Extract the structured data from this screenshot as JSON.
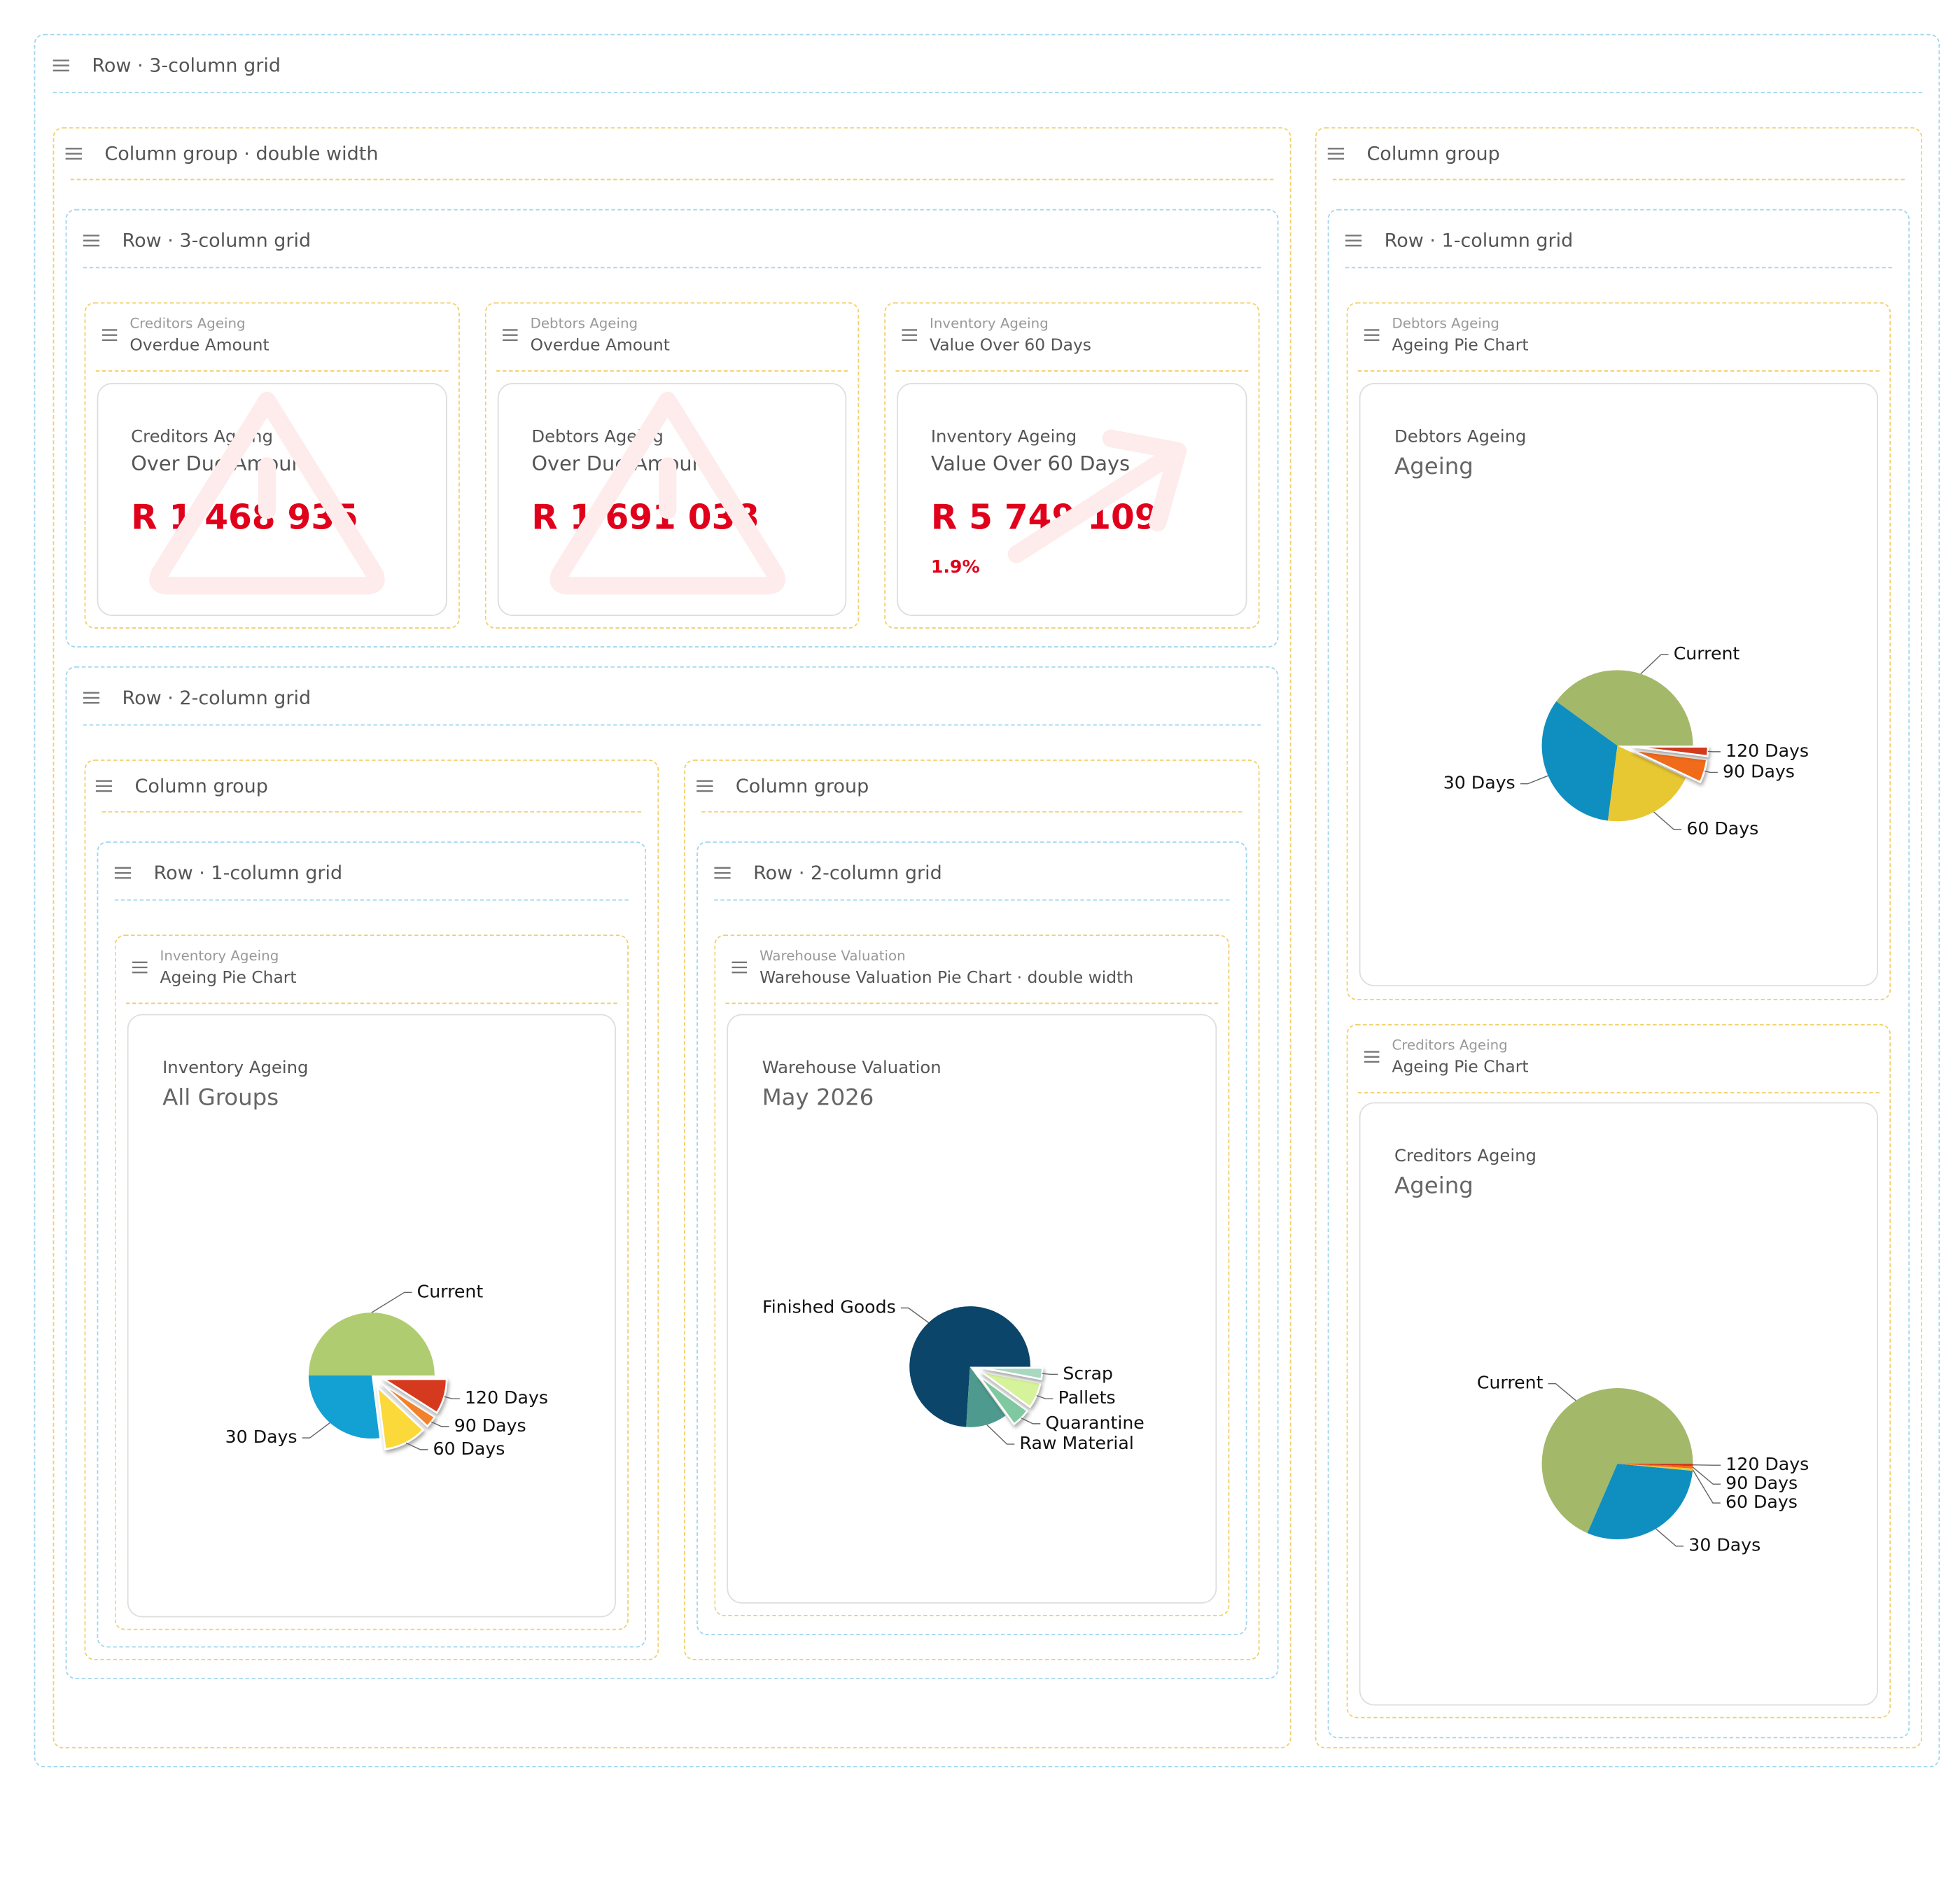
{
  "grid": {
    "label": "Row · 3-column grid",
    "left": {
      "label": "Column group · double width",
      "kpi_row": {
        "label": "Row · 3-column grid",
        "widgets": [
          {
            "source": "Creditors Ageing",
            "name": "Overdue Amount",
            "card": {
              "subtitle": "Creditors Ageing",
              "title": "Over Due Amount",
              "value": "R 1 468 935"
            }
          },
          {
            "source": "Debtors Ageing",
            "name": "Overdue Amount",
            "card": {
              "subtitle": "Debtors Ageing",
              "title": "Over Due Amount",
              "value": "R 1 691 038"
            }
          },
          {
            "source": "Inventory Ageing",
            "name": "Value Over 60 Days",
            "card": {
              "subtitle": "Inventory Ageing",
              "title": "Value Over 60 Days",
              "value": "R 5 749 109",
              "change": "1.9%"
            }
          }
        ]
      },
      "chart_row": {
        "label": "Row · 2-column grid",
        "groups": [
          {
            "label": "Column group",
            "row": {
              "label": "Row · 1-column grid",
              "widget": {
                "source": "Inventory Ageing",
                "name": "Ageing Pie Chart",
                "chart": {
                  "type": "pie",
                  "subtitle": "Inventory Ageing",
                  "title": "All Groups",
                  "categories": [
                    "Current",
                    "30 Days",
                    "60 Days",
                    "90 Days",
                    "120 Days"
                  ],
                  "values": [
                    50,
                    27,
                    11,
                    3,
                    9
                  ],
                  "colors": [
                    "#b0cc70",
                    "#13a0d2",
                    "#fcd93a",
                    "#f3812c",
                    "#d63a1e"
                  ],
                  "explode": [
                    false,
                    false,
                    true,
                    true,
                    true
                  ]
                }
              }
            }
          },
          {
            "label": "Column group",
            "row": {
              "label": "Row · 2-column grid",
              "widget": {
                "source": "Warehouse Valuation",
                "name": "Warehouse Valuation Pie Chart · double width",
                "chart": {
                  "type": "pie",
                  "subtitle": "Warehouse Valuation",
                  "title": "May 2026",
                  "categories": [
                    "Finished Goods",
                    "Raw Material",
                    "Quarantine",
                    "Pallets",
                    "Scrap"
                  ],
                  "values": [
                    74,
                    11,
                    5,
                    7,
                    3
                  ],
                  "colors": [
                    "#0b4569",
                    "#4f9a8e",
                    "#7fc8a0",
                    "#d6f29a",
                    "#a8d8c0"
                  ],
                  "explode": [
                    false,
                    false,
                    true,
                    true,
                    true
                  ]
                }
              }
            }
          }
        ]
      }
    },
    "right": {
      "label": "Column group",
      "row": {
        "label": "Row · 1-column grid",
        "widgets": [
          {
            "source": "Debtors Ageing",
            "name": "Ageing Pie Chart",
            "chart": {
              "type": "pie",
              "subtitle": "Debtors Ageing",
              "title": "Ageing",
              "categories": [
                "Current",
                "30 Days",
                "60 Days",
                "90 Days",
                "120 Days"
              ],
              "values": [
                40,
                33,
                20,
                5,
                2
              ],
              "colors": [
                "#a4b86a",
                "#0e8fc0",
                "#e8c832",
                "#f06b1a",
                "#d23a1e"
              ],
              "explode": [
                false,
                false,
                false,
                true,
                true
              ]
            }
          },
          {
            "source": "Creditors Ageing",
            "name": "Ageing Pie Chart",
            "chart": {
              "type": "pie",
              "subtitle": "Creditors Ageing",
              "title": "Ageing",
              "categories": [
                "Current",
                "30 Days",
                "60 Days",
                "90 Days",
                "120 Days"
              ],
              "values": [
                68.5,
                30,
                0.5,
                0.5,
                0.5
              ],
              "colors": [
                "#a4b86a",
                "#0e8fc0",
                "#e8c832",
                "#f06b1a",
                "#d23a1e"
              ],
              "explode": [
                false,
                false,
                false,
                false,
                false
              ]
            }
          }
        ]
      }
    }
  }
}
